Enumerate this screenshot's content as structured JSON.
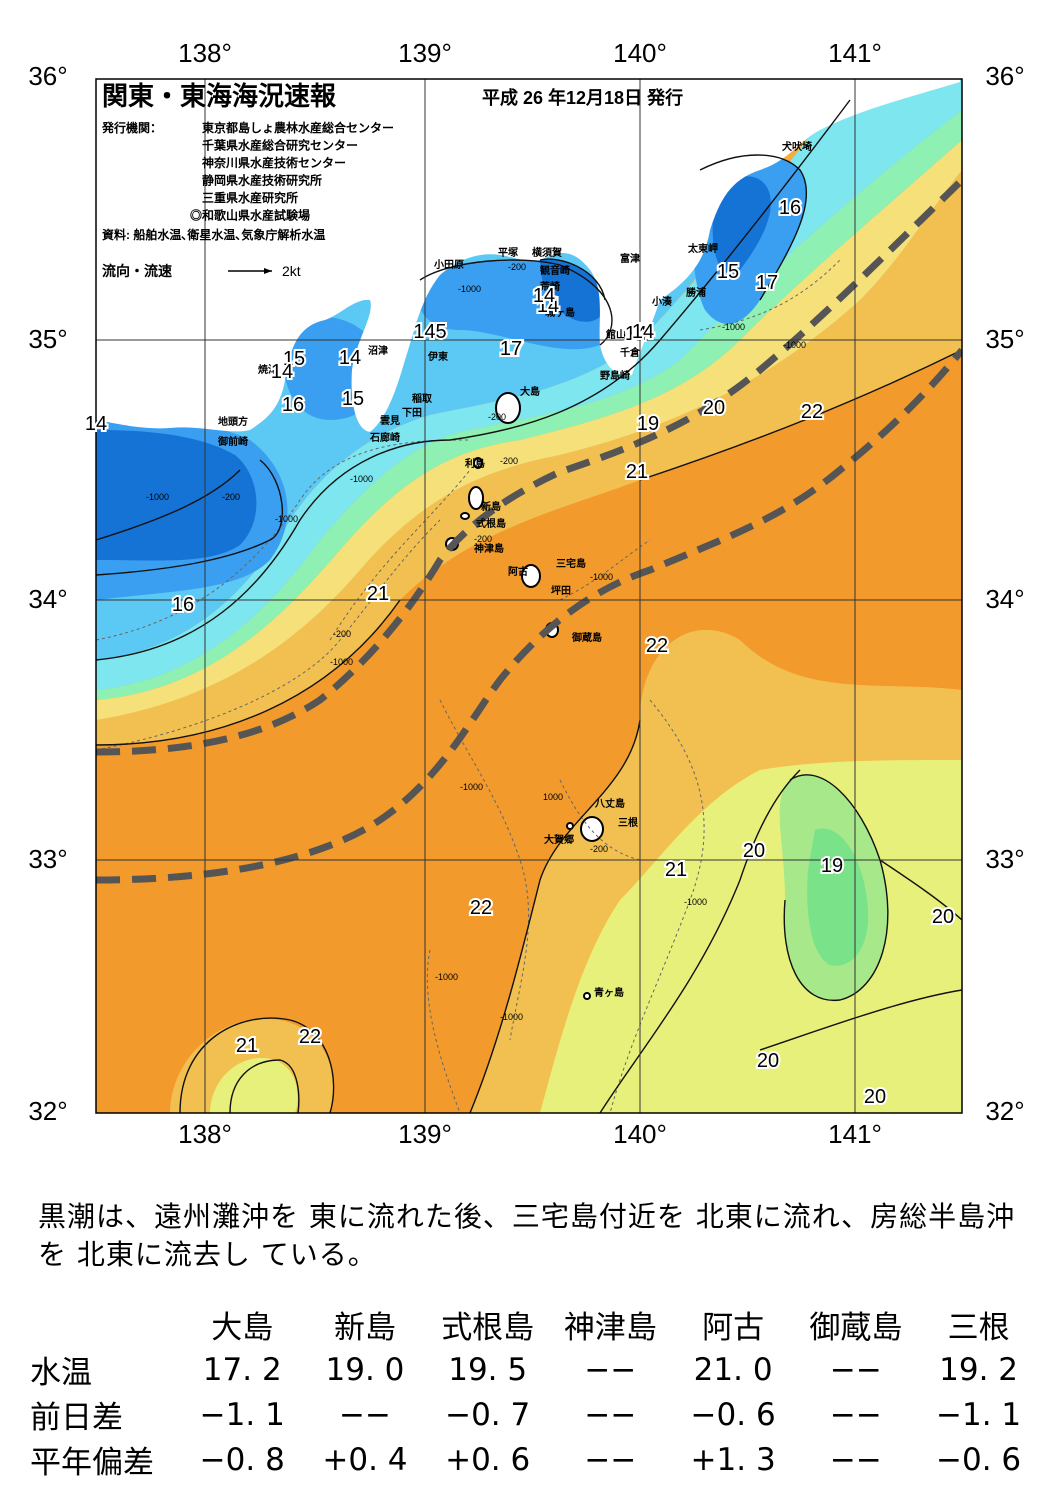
{
  "map": {
    "title": "関東・東海海況速報",
    "issue_date": "平成 26 年12月18日 発行",
    "issuer_label": "発行機関：",
    "issuers": [
      "東京都島しょ農林水産総合センター",
      "千葉県水産総合研究センター",
      "神奈川県水産技術センター",
      "静岡県水産技術研究所",
      "三重県水産研究所",
      "◎和歌山県水産試験場"
    ],
    "source": "資料: 船舶水温､衛星水温､気象庁解析水温",
    "flow_legend": "流向・流速",
    "flow_unit": "2kt",
    "lon_labels": [
      "138°",
      "139°",
      "140°",
      "141°"
    ],
    "lat_labels": [
      "36°",
      "35°",
      "34°",
      "33°",
      "32°"
    ],
    "place_names": [
      "犬吠埼",
      "太東岬",
      "勝浦",
      "小湊",
      "富津",
      "横須賀",
      "観音崎",
      "平塚",
      "荒崎",
      "城ヶ島",
      "館山",
      "千倉",
      "野島崎",
      "小田原",
      "伊東",
      "稲取",
      "下田",
      "雲見",
      "石廊崎",
      "沼津",
      "焼津",
      "地頭方",
      "御前崎",
      "大島",
      "利島",
      "新島",
      "式根島",
      "神津島",
      "三宅島",
      "阿古",
      "坪田",
      "御蔵島",
      "八丈島",
      "三根",
      "大賀郷",
      "青ヶ島"
    ],
    "isotherm_labels": [
      "14",
      "14",
      "14",
      "145",
      "15",
      "14",
      "15",
      "16",
      "16",
      "16",
      "17",
      "15",
      "17",
      "14",
      "14",
      "17",
      "19",
      "20",
      "22",
      "21",
      "21",
      "22",
      "20",
      "19",
      "20",
      "21",
      "22",
      "22",
      "21",
      "20",
      "20",
      "14"
    ],
    "depth_labels": [
      "-200",
      "-200",
      "-200",
      "-200",
      "-200",
      "-200",
      "-1000",
      "-1000",
      "-1000",
      "-1000",
      "-1000",
      "-1000",
      "-1000",
      "-1000",
      "-1000",
      "-1000",
      "-1000",
      "1000",
      "-200",
      "-1000"
    ],
    "colors": {
      "t14": "#1673d6",
      "t15": "#3a9ff0",
      "t16": "#5cc8f4",
      "t17": "#7ee6ee",
      "t18": "#8ff0b4",
      "t19": "#f5e07a",
      "t20": "#f2c050",
      "t21": "#f3ad3e",
      "t22": "#f29a2c",
      "warm20": "#e8f07c",
      "green19": "#7ae288",
      "land": "#ffffff",
      "kuroshio": "#555555"
    }
  },
  "summary": "黒潮は、遠州灘沖を 東に流れた後、三宅島付近を 北東に流れ、房総半島沖を 北東に流去し ている。",
  "table": {
    "columns": [
      "大島",
      "新島",
      "式根島",
      "神津島",
      "阿古",
      "御蔵島",
      "三根"
    ],
    "rows": [
      {
        "label": "水温",
        "values": [
          "17. 2",
          "19. 0",
          "19. 5",
          "−−",
          "21. 0",
          "−−",
          "19. 2"
        ]
      },
      {
        "label": "前日差",
        "values": [
          "−1. 1",
          "−−",
          "−0. 7",
          "−−",
          "−0. 6",
          "−−",
          "−1. 1"
        ]
      },
      {
        "label": "平年偏差",
        "values": [
          "−0. 8",
          "+0. 4",
          "+0. 6",
          "−−",
          "+1. 3",
          "−−",
          "−0. 6"
        ]
      }
    ]
  }
}
